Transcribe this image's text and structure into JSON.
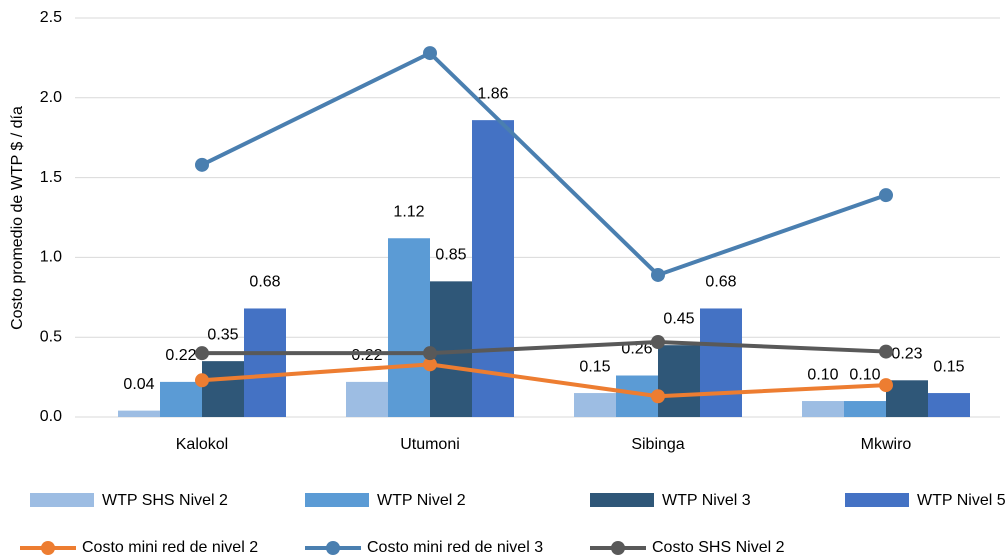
{
  "chart_data": {
    "type": "bar_line",
    "y_label": "Costo promedio de WTP $ / día",
    "categories": [
      "Kalokol",
      "Utumoni",
      "Sibinga",
      "Mkwiro"
    ],
    "ylim": [
      0,
      2.5
    ],
    "yticks": [
      {
        "value": 0,
        "label": "0.0"
      },
      0.5,
      {
        "value": 1,
        "label": "1.0"
      },
      1.5,
      {
        "value": 2,
        "label": "2.0"
      },
      2.5
    ],
    "grid": true,
    "series": [
      {
        "name": "WTP SHS Nivel 2",
        "kind": "bar",
        "color": "#9dbde3",
        "values": [
          0.04,
          0.22,
          0.15,
          0.1
        ],
        "value_labels": [
          "0.04",
          "0.22",
          "0.15",
          "0.10"
        ]
      },
      {
        "name": "WTP Nivel 2",
        "kind": "bar",
        "color": "#5b9bd5",
        "values": [
          0.22,
          1.12,
          0.26,
          0.1
        ],
        "value_labels": [
          "0.22",
          "1.12",
          "0.26",
          "0.10"
        ]
      },
      {
        "name": "WTP Nivel 3",
        "kind": "bar",
        "color": "#2f5778",
        "values": [
          0.35,
          0.85,
          0.45,
          0.23
        ],
        "value_labels": [
          "0.35",
          "0.85",
          "0.45",
          "0.23"
        ]
      },
      {
        "name": "WTP Nivel 5",
        "kind": "bar",
        "color": "#4472c4",
        "values": [
          0.68,
          1.86,
          0.68,
          0.15
        ],
        "value_labels": [
          "0.68",
          "1.86",
          "0.68",
          "0.15"
        ]
      },
      {
        "name": "Costo mini red de nivel 2",
        "kind": "line",
        "color": "#ed7d31",
        "values": [
          0.23,
          0.33,
          0.13,
          0.2
        ]
      },
      {
        "name": "Costo mini red de nivel 3",
        "kind": "line",
        "color": "#4a7fb0",
        "values": [
          1.58,
          2.28,
          0.89,
          1.39
        ]
      },
      {
        "name": "Costo SHS Nivel 2",
        "kind": "line",
        "color": "#595959",
        "values": [
          0.4,
          0.4,
          0.47,
          0.41
        ]
      }
    ]
  }
}
